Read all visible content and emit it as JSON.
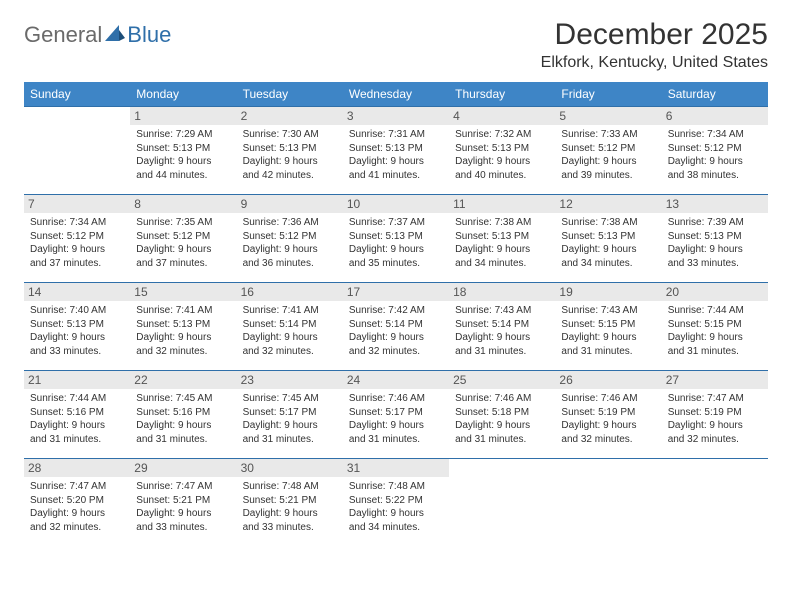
{
  "brand": {
    "part1": "General",
    "part2": "Blue"
  },
  "title": "December 2025",
  "location": "Elkfork, Kentucky, United States",
  "colors": {
    "header_bg": "#3e85c6",
    "header_text": "#ffffff",
    "border": "#2f6fa9",
    "daynum_bg": "#e9e9e9",
    "text": "#333333"
  },
  "days_of_week": [
    "Sunday",
    "Monday",
    "Tuesday",
    "Wednesday",
    "Thursday",
    "Friday",
    "Saturday"
  ],
  "weeks": [
    [
      null,
      {
        "n": "1",
        "sr": "7:29 AM",
        "ss": "5:13 PM",
        "dl": "9 hours and 44 minutes."
      },
      {
        "n": "2",
        "sr": "7:30 AM",
        "ss": "5:13 PM",
        "dl": "9 hours and 42 minutes."
      },
      {
        "n": "3",
        "sr": "7:31 AM",
        "ss": "5:13 PM",
        "dl": "9 hours and 41 minutes."
      },
      {
        "n": "4",
        "sr": "7:32 AM",
        "ss": "5:13 PM",
        "dl": "9 hours and 40 minutes."
      },
      {
        "n": "5",
        "sr": "7:33 AM",
        "ss": "5:12 PM",
        "dl": "9 hours and 39 minutes."
      },
      {
        "n": "6",
        "sr": "7:34 AM",
        "ss": "5:12 PM",
        "dl": "9 hours and 38 minutes."
      }
    ],
    [
      {
        "n": "7",
        "sr": "7:34 AM",
        "ss": "5:12 PM",
        "dl": "9 hours and 37 minutes."
      },
      {
        "n": "8",
        "sr": "7:35 AM",
        "ss": "5:12 PM",
        "dl": "9 hours and 37 minutes."
      },
      {
        "n": "9",
        "sr": "7:36 AM",
        "ss": "5:12 PM",
        "dl": "9 hours and 36 minutes."
      },
      {
        "n": "10",
        "sr": "7:37 AM",
        "ss": "5:13 PM",
        "dl": "9 hours and 35 minutes."
      },
      {
        "n": "11",
        "sr": "7:38 AM",
        "ss": "5:13 PM",
        "dl": "9 hours and 34 minutes."
      },
      {
        "n": "12",
        "sr": "7:38 AM",
        "ss": "5:13 PM",
        "dl": "9 hours and 34 minutes."
      },
      {
        "n": "13",
        "sr": "7:39 AM",
        "ss": "5:13 PM",
        "dl": "9 hours and 33 minutes."
      }
    ],
    [
      {
        "n": "14",
        "sr": "7:40 AM",
        "ss": "5:13 PM",
        "dl": "9 hours and 33 minutes."
      },
      {
        "n": "15",
        "sr": "7:41 AM",
        "ss": "5:13 PM",
        "dl": "9 hours and 32 minutes."
      },
      {
        "n": "16",
        "sr": "7:41 AM",
        "ss": "5:14 PM",
        "dl": "9 hours and 32 minutes."
      },
      {
        "n": "17",
        "sr": "7:42 AM",
        "ss": "5:14 PM",
        "dl": "9 hours and 32 minutes."
      },
      {
        "n": "18",
        "sr": "7:43 AM",
        "ss": "5:14 PM",
        "dl": "9 hours and 31 minutes."
      },
      {
        "n": "19",
        "sr": "7:43 AM",
        "ss": "5:15 PM",
        "dl": "9 hours and 31 minutes."
      },
      {
        "n": "20",
        "sr": "7:44 AM",
        "ss": "5:15 PM",
        "dl": "9 hours and 31 minutes."
      }
    ],
    [
      {
        "n": "21",
        "sr": "7:44 AM",
        "ss": "5:16 PM",
        "dl": "9 hours and 31 minutes."
      },
      {
        "n": "22",
        "sr": "7:45 AM",
        "ss": "5:16 PM",
        "dl": "9 hours and 31 minutes."
      },
      {
        "n": "23",
        "sr": "7:45 AM",
        "ss": "5:17 PM",
        "dl": "9 hours and 31 minutes."
      },
      {
        "n": "24",
        "sr": "7:46 AM",
        "ss": "5:17 PM",
        "dl": "9 hours and 31 minutes."
      },
      {
        "n": "25",
        "sr": "7:46 AM",
        "ss": "5:18 PM",
        "dl": "9 hours and 31 minutes."
      },
      {
        "n": "26",
        "sr": "7:46 AM",
        "ss": "5:19 PM",
        "dl": "9 hours and 32 minutes."
      },
      {
        "n": "27",
        "sr": "7:47 AM",
        "ss": "5:19 PM",
        "dl": "9 hours and 32 minutes."
      }
    ],
    [
      {
        "n": "28",
        "sr": "7:47 AM",
        "ss": "5:20 PM",
        "dl": "9 hours and 32 minutes."
      },
      {
        "n": "29",
        "sr": "7:47 AM",
        "ss": "5:21 PM",
        "dl": "9 hours and 33 minutes."
      },
      {
        "n": "30",
        "sr": "7:48 AM",
        "ss": "5:21 PM",
        "dl": "9 hours and 33 minutes."
      },
      {
        "n": "31",
        "sr": "7:48 AM",
        "ss": "5:22 PM",
        "dl": "9 hours and 34 minutes."
      },
      null,
      null,
      null
    ]
  ],
  "labels": {
    "sunrise": "Sunrise:",
    "sunset": "Sunset:",
    "daylight": "Daylight:"
  }
}
